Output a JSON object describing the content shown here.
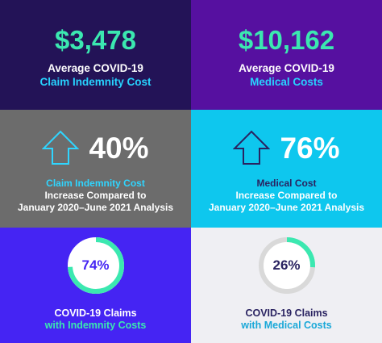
{
  "colors": {
    "navy": "#231357",
    "purple": "#5610a0",
    "gray": "#6c6c6c",
    "cyan": "#0ec7ee",
    "violet": "#4524f3",
    "light": "#efeff3",
    "green": "#3be8b0",
    "cyan_text": "#27d3ff",
    "dark_text": "#2a2361",
    "ring_track": "#d9d9d9"
  },
  "tiles": {
    "indemnity_cost": {
      "value": "$3,478",
      "line1": "Average COVID-19",
      "line2": "Claim Indemnity Cost"
    },
    "medical_cost": {
      "value": "$10,162",
      "line1": "Average COVID-19",
      "line2": "Medical Costs"
    },
    "indemnity_increase": {
      "icon": "arrow-up-icon",
      "percent": "40%",
      "line1": "Claim Indemnity Cost",
      "line2": "Increase Compared to",
      "line3": "January 2020–June 2021 Analysis"
    },
    "medical_increase": {
      "icon": "arrow-up-icon",
      "percent": "76%",
      "line1": "Medical Cost",
      "line2": "Increase Compared to",
      "line3": "January 2020–June 2021 Analysis"
    },
    "claims_indemnity": {
      "percent": "74%",
      "fraction": 0.74,
      "line1": "COVID-19 Claims",
      "line2": "with Indemnity Costs"
    },
    "claims_medical": {
      "percent": "26%",
      "fraction": 0.26,
      "line1": "COVID-19 Claims",
      "line2": "with Medical Costs"
    }
  }
}
